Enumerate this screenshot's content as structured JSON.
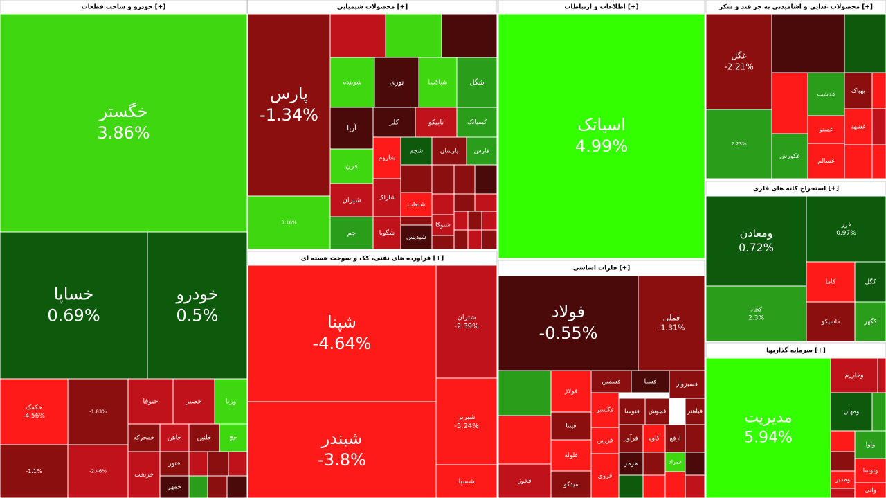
{
  "sectors": [
    {
      "title": "خودرو و ساخت قطعات [+]",
      "tiles": [
        {
          "name": "خگستر",
          "change": "3.86%"
        },
        {
          "name": "خساپا",
          "change": "0.69%"
        },
        {
          "name": "خودرو",
          "change": "0.5%"
        },
        {
          "name": "خکمک",
          "change": "-4.56%"
        },
        {
          "change": "-1.83%"
        },
        {
          "change": "-1.1%"
        },
        {
          "change": "-2.46%"
        },
        {
          "name": "ختوقا"
        },
        {
          "name": "خصبر"
        },
        {
          "name": "ورنا"
        },
        {
          "name": "خمحرکه"
        },
        {
          "name": "خاهن"
        },
        {
          "name": "خلنین"
        },
        {
          "name": "خچ"
        },
        {
          "name": "خریخت"
        },
        {
          "name": "ختور"
        },
        {
          "name": "خمهر"
        }
      ]
    },
    {
      "title": "محصولات شیمیایی [+]",
      "tiles": [
        {
          "name": "پارس",
          "change": "-1.34%"
        },
        {
          "change": "3.16%"
        },
        {
          "name": "شوینده"
        },
        {
          "name": "نوری"
        },
        {
          "name": "شپاکسا"
        },
        {
          "name": "شگل"
        },
        {
          "name": "آریا"
        },
        {
          "name": "کلر"
        },
        {
          "name": "تاپیکو"
        },
        {
          "name": "کیمیاتک"
        },
        {
          "name": "فرن"
        },
        {
          "name": "شیران"
        },
        {
          "name": "جم"
        },
        {
          "name": "شاروم"
        },
        {
          "name": "شجم"
        },
        {
          "name": "پارسان"
        },
        {
          "name": "فارس"
        },
        {
          "name": "شاراک"
        },
        {
          "name": "شگویا"
        },
        {
          "name": "شلعاب"
        },
        {
          "name": "شپدیس"
        },
        {
          "name": "شنوکا"
        }
      ]
    },
    {
      "title": "فراورده های نفتی، کک و سوخت هسته ای [+]",
      "tiles": [
        {
          "name": "شپنا",
          "change": "-4.64%"
        },
        {
          "name": "شبندر",
          "change": "-3.8%"
        },
        {
          "name": "شتران",
          "change": "-2.39%"
        },
        {
          "name": "شبریز",
          "change": "-5.24%"
        },
        {
          "name": "شسپا"
        }
      ]
    },
    {
      "title": "اطلاعات و ارتباطات [+]",
      "tiles": [
        {
          "name": "اسیاتک",
          "change": "4.99%"
        }
      ]
    },
    {
      "title": "فلزات اساسی [+]",
      "tiles": [
        {
          "name": "فولاد",
          "change": "-0.55%"
        },
        {
          "name": "فملی",
          "change": "-1.31%"
        },
        {
          "name": "فولاژ"
        },
        {
          "name": "فسمین"
        },
        {
          "name": "فسپا"
        },
        {
          "name": "فسبزوار"
        },
        {
          "name": "فینتا"
        },
        {
          "name": "فگستر"
        },
        {
          "name": "فنوسا"
        },
        {
          "name": "فجوش"
        },
        {
          "name": "فلوله"
        },
        {
          "name": "فزرین"
        },
        {
          "name": "فرآور"
        },
        {
          "name": "کاوه"
        },
        {
          "name": "فخوز"
        },
        {
          "name": "هرمز"
        },
        {
          "name": "میدکو"
        },
        {
          "name": "فروی"
        },
        {
          "name": "ارفع"
        },
        {
          "name": "فباهنر"
        },
        {
          "name": "فمراد"
        }
      ]
    },
    {
      "title": "محصولات غذایی و آشامیدنی به جز قند و شکر [+]",
      "tiles": [
        {
          "name": "غگل",
          "change": "-2.21%"
        },
        {
          "change": "2.23%"
        },
        {
          "name": "غکورش"
        },
        {
          "name": "غدشت"
        },
        {
          "name": "بهپاک"
        },
        {
          "name": "غمینو"
        },
        {
          "name": "غشهد"
        },
        {
          "name": "غسالم"
        }
      ]
    },
    {
      "title": "استخراج کانه های فلزی [+]",
      "tiles": [
        {
          "name": "ومعادن",
          "change": "0.72%"
        },
        {
          "name": "کچاد",
          "change": "2.3%"
        },
        {
          "name": "فزر",
          "change": "0.97%"
        },
        {
          "name": "کاما"
        },
        {
          "name": "کگل"
        },
        {
          "name": "ذاسیکو"
        },
        {
          "name": "کگهر"
        }
      ]
    },
    {
      "title": "سرمایه گذاریها [+]",
      "tiles": [
        {
          "name": "مدیریت",
          "change": "5.94%"
        },
        {
          "name": "وخارزم"
        },
        {
          "name": "ومهان"
        },
        {
          "name": "واوا"
        },
        {
          "name": "ونوسا"
        },
        {
          "name": "ومدیر"
        },
        {
          "name": "وانی"
        }
      ]
    }
  ]
}
